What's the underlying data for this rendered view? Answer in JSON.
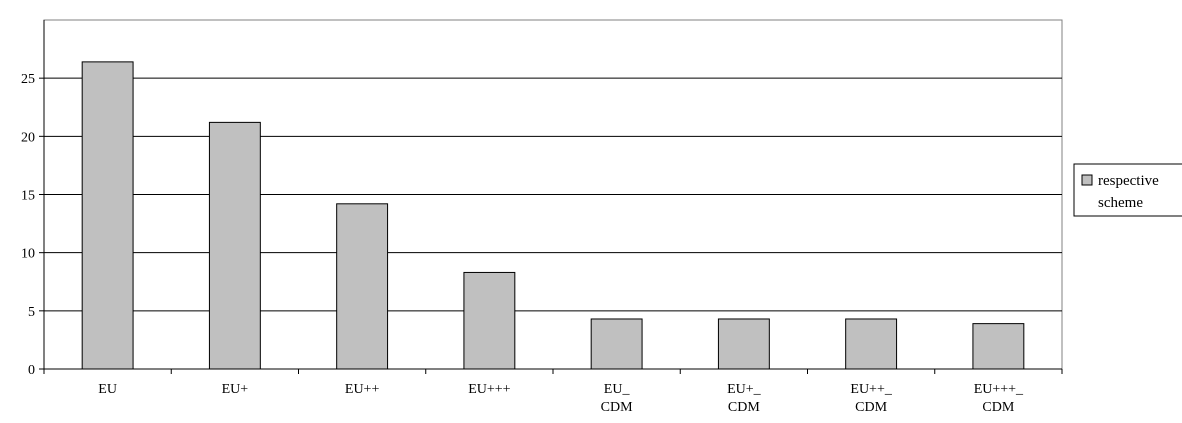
{
  "chart_data": {
    "type": "bar",
    "title": "",
    "xlabel": "",
    "ylabel": "",
    "categories": [
      [
        "EU"
      ],
      [
        "EU+"
      ],
      [
        "EU++"
      ],
      [
        "EU+++"
      ],
      [
        "EU_",
        "CDM"
      ],
      [
        "EU+_",
        "CDM"
      ],
      [
        "EU++_",
        "CDM"
      ],
      [
        "EU+++_",
        "CDM"
      ]
    ],
    "series": [
      {
        "name": "respective scheme",
        "values": [
          26.4,
          21.2,
          14.2,
          8.3,
          4.3,
          4.3,
          4.3,
          3.9
        ],
        "color": "#c0c0c0"
      }
    ],
    "ylim": [
      0,
      30
    ],
    "yticks": [
      "0",
      "5",
      "10",
      "15",
      "20",
      "25"
    ],
    "grid": true,
    "legend": {
      "position": "right",
      "lines": [
        "respective",
        "scheme"
      ]
    }
  }
}
